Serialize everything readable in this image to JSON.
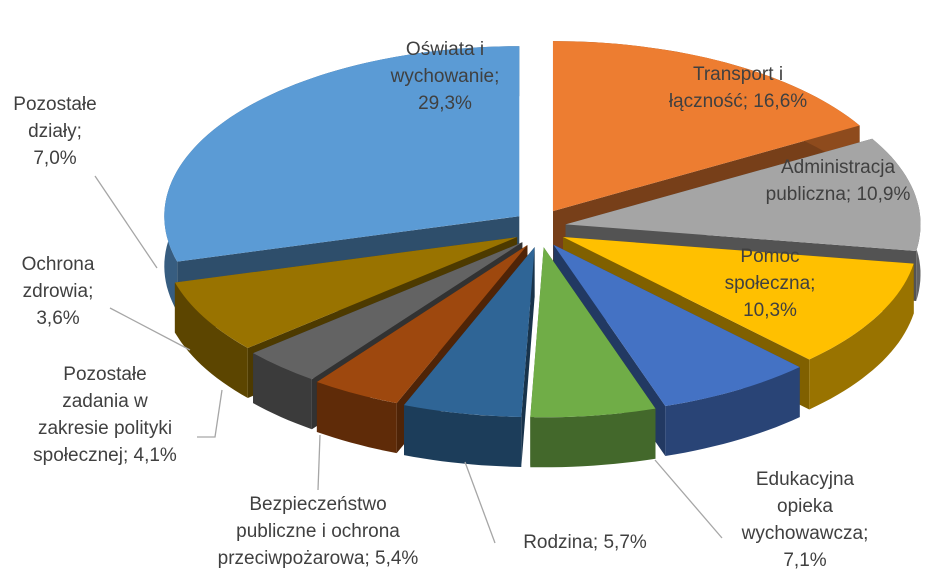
{
  "chart_data": {
    "type": "pie3d",
    "categories": [
      "Oświata i wychowanie;",
      "Transport i łączność;",
      "Administracja publiczna;",
      "Pomoc społeczna;",
      "Edukacyjna opieka wychowawcza;",
      "Rodzina;",
      "Bezpieczeństwo publiczne i ochrona przeciwpożarowa;",
      "Pozostałe zadania w zakresie polityki społecznej;",
      "Ochrona zdrowia;",
      "Pozostałe działy;"
    ],
    "values": [
      29.3,
      16.6,
      10.9,
      10.3,
      7.1,
      5.7,
      5.4,
      4.1,
      3.6,
      7.0
    ],
    "value_labels": [
      "29,3%",
      "16,6%",
      "10,9%",
      "10,3%",
      "7,1%",
      "5,7%",
      "5,4%",
      "4,1%",
      "3,6%",
      "7,0%"
    ],
    "colors": [
      "#5b9bd5",
      "#ed7d31",
      "#a5a5a5",
      "#ffc000",
      "#4472c4",
      "#70ad47",
      "#2f6596",
      "#9e480e",
      "#636363",
      "#997300"
    ]
  }
}
